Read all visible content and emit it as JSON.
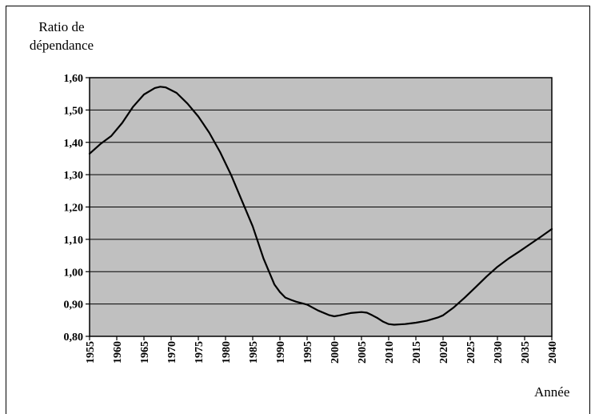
{
  "chart_data": {
    "type": "line",
    "ylabel": "Ratio de dépendance",
    "ylabel_lines": [
      "Ratio de",
      "dépendance"
    ],
    "xlabel": "Année",
    "ylim": [
      0.8,
      1.6
    ],
    "xlim": [
      1955,
      2040
    ],
    "yticks": [
      "0,80",
      "0,90",
      "1,00",
      "1,10",
      "1,20",
      "1,30",
      "1,40",
      "1,50",
      "1,60"
    ],
    "xticks": [
      "1955",
      "1960",
      "1965",
      "1970",
      "1975",
      "1980",
      "1985",
      "1990",
      "1995",
      "2000",
      "2005",
      "2010",
      "2015",
      "2020",
      "2025",
      "2030",
      "2035",
      "2040"
    ],
    "grid": true,
    "plot_background": "#c0c0c0",
    "line_color": "#000000",
    "series": [
      {
        "x": [
          1955,
          1957,
          1959,
          1961,
          1963,
          1965,
          1967,
          1968,
          1969,
          1971,
          1973,
          1975,
          1977,
          1979,
          1981,
          1983,
          1985,
          1987,
          1989,
          1990,
          1991,
          1992,
          1993,
          1995,
          1997,
          1999,
          2000,
          2001,
          2003,
          2005,
          2006,
          2007,
          2008,
          2009,
          2010,
          2011,
          2013,
          2015,
          2017,
          2019,
          2020,
          2022,
          2024,
          2026,
          2028,
          2030,
          2032,
          2034,
          2036,
          2038,
          2040
        ],
        "y": [
          1.365,
          1.395,
          1.42,
          1.46,
          1.51,
          1.548,
          1.568,
          1.572,
          1.57,
          1.553,
          1.52,
          1.48,
          1.43,
          1.37,
          1.3,
          1.22,
          1.14,
          1.04,
          0.96,
          0.937,
          0.92,
          0.913,
          0.907,
          0.898,
          0.88,
          0.866,
          0.862,
          0.865,
          0.872,
          0.875,
          0.873,
          0.865,
          0.856,
          0.845,
          0.838,
          0.836,
          0.838,
          0.842,
          0.848,
          0.858,
          0.865,
          0.89,
          0.92,
          0.952,
          0.985,
          1.015,
          1.04,
          1.062,
          1.085,
          1.108,
          1.132
        ]
      }
    ]
  }
}
